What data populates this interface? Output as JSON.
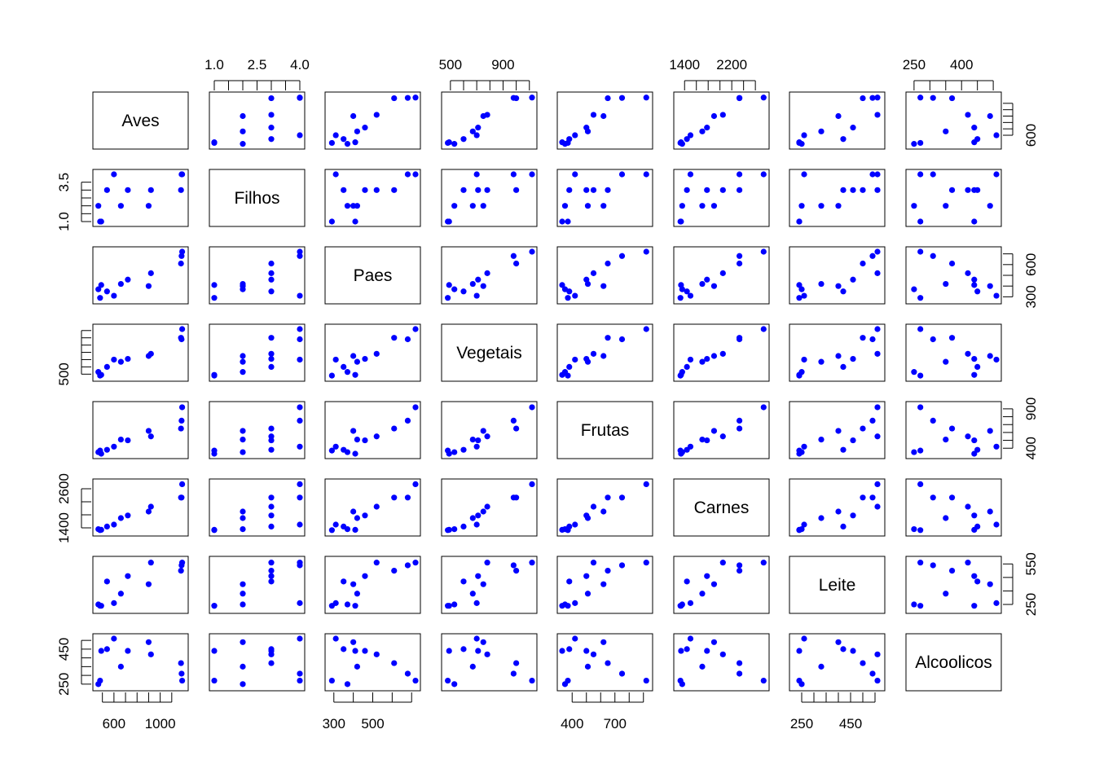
{
  "chart_data": {
    "type": "scatter",
    "kind": "pairs-matrix",
    "point_color": "#0000ff",
    "variables": [
      "Aves",
      "Filhos",
      "Paes",
      "Vegetais",
      "Frutas",
      "Carnes",
      "Leite",
      "Alcoolicos"
    ],
    "ranges": {
      "Aves": [
        460,
        1200
      ],
      "Filhos": [
        1,
        4
      ],
      "Paes": [
        280,
        720
      ],
      "Vegetais": [
        470,
        1120
      ],
      "Frutas": [
        330,
        930
      ],
      "Carnes": [
        1300,
        2750
      ],
      "Leite": [
        220,
        570
      ],
      "Alcoolicos": [
        240,
        510
      ]
    },
    "axes": {
      "Aves": {
        "side": "bottom",
        "label_ticks": [
          600,
          1000
        ],
        "minor_ticks": [
          500,
          600,
          700,
          800,
          900,
          1000,
          1100
        ]
      },
      "Filhos": {
        "side": "top",
        "label_ticks": [
          1.0,
          2.5,
          4.0
        ],
        "minor_ticks": [
          1.0,
          1.5,
          2.0,
          2.5,
          3.0,
          3.5,
          4.0
        ],
        "label_text": [
          "1.0",
          "2.5",
          "4.0"
        ]
      },
      "Paes": {
        "side": "bottom",
        "label_ticks": [
          300,
          500
        ],
        "minor_ticks": [
          300,
          400,
          500,
          600,
          700
        ]
      },
      "Vegetais": {
        "side": "top",
        "label_ticks": [
          500,
          900
        ],
        "minor_ticks": [
          500,
          600,
          700,
          800,
          900,
          1000,
          1100
        ]
      },
      "Frutas": {
        "side": "bottom",
        "label_ticks": [
          400,
          700
        ],
        "minor_ticks": [
          400,
          500,
          600,
          700,
          800,
          900
        ]
      },
      "Carnes": {
        "side": "top",
        "label_ticks": [
          1400,
          2200
        ],
        "minor_ticks": [
          1400,
          1600,
          1800,
          2000,
          2200,
          2400,
          2600
        ]
      },
      "Leite": {
        "side": "bottom",
        "label_ticks": [
          250,
          450
        ],
        "minor_ticks": [
          250,
          300,
          350,
          400,
          450,
          500,
          550
        ]
      },
      "Alcoolicos": {
        "side": "top",
        "label_ticks": [
          250,
          400
        ],
        "minor_ticks": [
          250,
          300,
          350,
          400,
          450,
          500
        ]
      }
    },
    "y_axes": {
      "Aves": {
        "side": "right",
        "label_ticks": [
          600
        ],
        "minor_ticks": [
          600,
          700,
          800,
          900,
          1000,
          1100
        ]
      },
      "Filhos": {
        "side": "left",
        "label_ticks": [
          1.0,
          3.5
        ],
        "minor_ticks": [
          1.0,
          1.5,
          2.0,
          2.5,
          3.0,
          3.5
        ],
        "label_text": [
          "1.0",
          "3.5"
        ]
      },
      "Paes": {
        "side": "right",
        "label_ticks": [
          300,
          600
        ],
        "minor_ticks": [
          300,
          400,
          500,
          600,
          700
        ]
      },
      "Vegetais": {
        "side": "left",
        "label_ticks": [
          500
        ],
        "minor_ticks": [
          500,
          600,
          700,
          800,
          900,
          1000,
          1100
        ]
      },
      "Frutas": {
        "side": "right",
        "label_ticks": [
          400,
          900
        ],
        "minor_ticks": [
          400,
          500,
          600,
          700,
          800,
          900
        ]
      },
      "Carnes": {
        "side": "left",
        "label_ticks": [
          1400,
          2600
        ],
        "minor_ticks": [
          1400,
          1800,
          2200,
          2600
        ]
      },
      "Leite": {
        "side": "right",
        "label_ticks": [
          250,
          550
        ],
        "minor_ticks": [
          250,
          350,
          450,
          550
        ]
      },
      "Alcoolicos": {
        "side": "left",
        "label_ticks": [
          250,
          450
        ],
        "minor_ticks": [
          250,
          300,
          350,
          400,
          450,
          500
        ]
      }
    },
    "observations": [
      {
        "Aves": 1190,
        "Filhos": 4,
        "Paes": 720,
        "Vegetais": 1120,
        "Frutas": 920,
        "Carnes": 2740,
        "Leite": 560,
        "Alcoolicos": 270
      },
      {
        "Aves": 1185,
        "Filhos": 4,
        "Paes": 680,
        "Vegetais": 980,
        "Frutas": 750,
        "Carnes": 2330,
        "Leite": 540,
        "Alcoolicos": 310
      },
      {
        "Aves": 1180,
        "Filhos": 3,
        "Paes": 610,
        "Vegetais": 1000,
        "Frutas": 650,
        "Carnes": 2330,
        "Leite": 500,
        "Alcoolicos": 370
      },
      {
        "Aves": 920,
        "Filhos": 3,
        "Paes": 520,
        "Vegetais": 780,
        "Frutas": 550,
        "Carnes": 2050,
        "Leite": 560,
        "Alcoolicos": 420
      },
      {
        "Aves": 900,
        "Filhos": 2,
        "Paes": 400,
        "Vegetais": 750,
        "Frutas": 620,
        "Carnes": 1900,
        "Leite": 400,
        "Alcoolicos": 490
      },
      {
        "Aves": 720,
        "Filhos": 3,
        "Paes": 460,
        "Vegetais": 710,
        "Frutas": 500,
        "Carnes": 1780,
        "Leite": 460,
        "Alcoolicos": 440
      },
      {
        "Aves": 660,
        "Filhos": 2,
        "Paes": 420,
        "Vegetais": 670,
        "Frutas": 510,
        "Carnes": 1700,
        "Leite": 330,
        "Alcoolicos": 350
      },
      {
        "Aves": 600,
        "Filhos": 4,
        "Paes": 310,
        "Vegetais": 700,
        "Frutas": 420,
        "Carnes": 1500,
        "Leite": 260,
        "Alcoolicos": 510
      },
      {
        "Aves": 540,
        "Filhos": 3,
        "Paes": 350,
        "Vegetais": 600,
        "Frutas": 380,
        "Carnes": 1440,
        "Leite": 420,
        "Alcoolicos": 450
      },
      {
        "Aves": 490,
        "Filhos": 1,
        "Paes": 410,
        "Vegetais": 490,
        "Frutas": 330,
        "Carnes": 1340,
        "Leite": 240,
        "Alcoolicos": 440
      },
      {
        "Aves": 480,
        "Filhos": 1,
        "Paes": 290,
        "Vegetais": 480,
        "Frutas": 370,
        "Carnes": 1330,
        "Leite": 240,
        "Alcoolicos": 270
      },
      {
        "Aves": 465,
        "Filhos": 2,
        "Paes": 370,
        "Vegetais": 530,
        "Frutas": 350,
        "Carnes": 1360,
        "Leite": 250,
        "Alcoolicos": 250
      }
    ]
  }
}
